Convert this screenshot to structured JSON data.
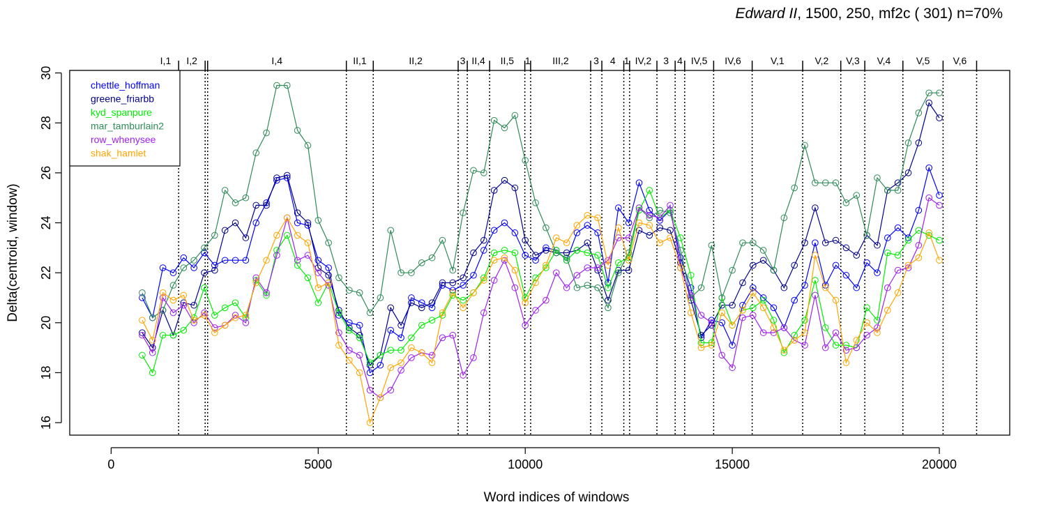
{
  "title": {
    "play": "Edward II",
    "rest": ", 1500, 250, mf2c ( 301)   n=70%"
  },
  "chart_data": {
    "type": "line",
    "xlabel": "Word indices of windows",
    "ylabel": "Delta(centroid, window)",
    "xlim": [
      -1000,
      21700
    ],
    "ylim": [
      15.5,
      30.1
    ],
    "xticks": [
      0,
      5000,
      10000,
      15000,
      20000
    ],
    "yticks": [
      16,
      18,
      20,
      22,
      24,
      26,
      28,
      30
    ],
    "legend_position": "top-left",
    "grid": false,
    "scenes": [
      {
        "label": "I,1",
        "end": 1630
      },
      {
        "label": "I,2",
        "end": 2270
      },
      {
        "label": "",
        "end": 2330
      },
      {
        "label": "I,4",
        "end": 5680
      },
      {
        "label": "II,1",
        "end": 6330
      },
      {
        "label": "II,2",
        "end": 8380
      },
      {
        "label": "3",
        "end": 8600
      },
      {
        "label": "II,4",
        "end": 9140
      },
      {
        "label": "II,5",
        "end": 9990
      },
      {
        "label": "1",
        "end": 10130
      },
      {
        "label": "III,2",
        "end": 11580
      },
      {
        "label": "3",
        "end": 11850
      },
      {
        "label": "4",
        "end": 12380
      },
      {
        "label": "1",
        "end": 12520
      },
      {
        "label": "IV,2",
        "end": 13180
      },
      {
        "label": "3",
        "end": 13620
      },
      {
        "label": "4",
        "end": 13850
      },
      {
        "label": "IV,5",
        "end": 14550
      },
      {
        "label": "IV,6",
        "end": 15480
      },
      {
        "label": "V,1",
        "end": 16700
      },
      {
        "label": "V,2",
        "end": 17620
      },
      {
        "label": "V,3",
        "end": 18200
      },
      {
        "label": "V,4",
        "end": 19120
      },
      {
        "label": "V,5",
        "end": 20090
      },
      {
        "label": "V,6",
        "end": 20900
      }
    ],
    "x": [
      750,
      1000,
      1250,
      1500,
      1750,
      2000,
      2250,
      2500,
      2750,
      3000,
      3250,
      3500,
      3750,
      4000,
      4250,
      4500,
      4750,
      5000,
      5250,
      5500,
      5750,
      6000,
      6250,
      6500,
      6750,
      7000,
      7250,
      7500,
      7750,
      8000,
      8250,
      8500,
      8750,
      9000,
      9250,
      9500,
      9750,
      10000,
      10250,
      10500,
      10750,
      11000,
      11250,
      11500,
      11750,
      12000,
      12250,
      12500,
      12750,
      13000,
      13250,
      13500,
      13750,
      14000,
      14250,
      14500,
      14750,
      15000,
      15250,
      15500,
      15750,
      16000,
      16250,
      16500,
      16750,
      17000,
      17250,
      17500,
      17750,
      18000,
      18250,
      18500,
      18750,
      19000,
      19250,
      19500,
      19750,
      20000
    ],
    "series": [
      {
        "name": "chettle_hoffman",
        "color": "#0000ff",
        "values": [
          21.0,
          20.2,
          22.2,
          22.0,
          22.6,
          22.2,
          22.8,
          22.3,
          22.5,
          22.5,
          22.5,
          24.0,
          24.8,
          25.7,
          25.8,
          24.0,
          23.9,
          22.5,
          22.2,
          20.3,
          20.0,
          19.9,
          18.0,
          18.3,
          19.7,
          19.4,
          21.0,
          20.8,
          20.6,
          21.5,
          21.3,
          21.5,
          21.9,
          22.9,
          23.7,
          24.0,
          23.6,
          22.7,
          22.5,
          23.0,
          22.9,
          22.5,
          23.6,
          23.9,
          23.6,
          21.6,
          24.6,
          24.0,
          25.6,
          24.5,
          24.1,
          24.5,
          22.6,
          21.4,
          19.4,
          20.1,
          20.0,
          19.1,
          20.7,
          21.4,
          21.0,
          20.6,
          19.8,
          20.9,
          21.5,
          23.2,
          21.5,
          22.3,
          21.9,
          21.4,
          22.4,
          22.0,
          23.4,
          23.8,
          23.4,
          24.5,
          26.2,
          25.1
        ]
      },
      {
        "name": "greene_friarbb",
        "color": "#00008b",
        "values": [
          19.6,
          19.0,
          20.5,
          19.5,
          20.8,
          20.7,
          22.0,
          22.1,
          23.7,
          24.0,
          23.4,
          24.7,
          24.7,
          25.8,
          25.9,
          24.4,
          24.0,
          22.2,
          21.9,
          20.5,
          19.8,
          19.5,
          18.3,
          18.7,
          20.6,
          19.9,
          20.8,
          20.6,
          20.8,
          21.6,
          21.6,
          21.8,
          22.8,
          23.3,
          25.3,
          25.7,
          25.4,
          23.3,
          22.7,
          22.9,
          22.8,
          22.8,
          22.9,
          23.2,
          22.1,
          20.9,
          22.1,
          22.1,
          23.7,
          23.5,
          23.8,
          23.7,
          22.4,
          20.9,
          19.5,
          19.9,
          20.7,
          20.7,
          21.6,
          22.3,
          22.5,
          22.1,
          21.4,
          22.3,
          23.2,
          24.6,
          23.2,
          23.3,
          23.0,
          22.7,
          23.5,
          23.1,
          25.3,
          25.6,
          26.0,
          27.2,
          28.8,
          28.2
        ]
      },
      {
        "name": "kyd_spanpure",
        "color": "#00ee00",
        "values": [
          18.7,
          18.0,
          19.5,
          19.5,
          19.7,
          20.2,
          21.4,
          20.3,
          20.6,
          20.8,
          20.2,
          21.7,
          21.1,
          22.9,
          23.5,
          22.3,
          21.8,
          20.8,
          21.6,
          20.4,
          19.7,
          19.4,
          18.4,
          18.7,
          18.9,
          18.9,
          19.4,
          19.9,
          20.1,
          20.3,
          21.1,
          20.9,
          21.2,
          21.8,
          22.8,
          22.9,
          22.8,
          21.0,
          21.8,
          22.2,
          22.9,
          22.5,
          22.9,
          22.8,
          22.7,
          21.4,
          22.4,
          22.6,
          24.5,
          25.3,
          24.2,
          24.5,
          23.4,
          21.9,
          19.2,
          19.2,
          21.0,
          19.9,
          20.5,
          20.6,
          20.9,
          20.1,
          18.8,
          19.5,
          20.1,
          21.7,
          19.8,
          19.1,
          19.1,
          19.0,
          20.6,
          20.1,
          22.8,
          22.7,
          23.3,
          23.7,
          23.5,
          23.3
        ]
      },
      {
        "name": "mar_tamburlain2",
        "color": "#2e8b57",
        "values": [
          21.2,
          20.2,
          20.5,
          21.5,
          22.2,
          22.5,
          23.0,
          23.5,
          25.3,
          24.8,
          25.0,
          26.8,
          27.6,
          29.5,
          29.5,
          27.7,
          27.1,
          24.1,
          23.2,
          21.8,
          21.3,
          21.2,
          20.4,
          21.0,
          23.7,
          22.0,
          22.0,
          22.4,
          22.6,
          23.3,
          22.1,
          24.4,
          26.1,
          26.0,
          28.1,
          27.8,
          28.3,
          26.5,
          24.8,
          23.8,
          22.8,
          22.6,
          21.4,
          21.5,
          21.4,
          20.6,
          22.0,
          22.8,
          24.6,
          24.2,
          24.5,
          24.4,
          22.9,
          21.0,
          21.4,
          23.1,
          21.0,
          22.1,
          23.2,
          23.2,
          22.9,
          22.1,
          24.2,
          25.4,
          27.1,
          25.6,
          25.6,
          25.6,
          24.8,
          25.1,
          23.5,
          25.8,
          25.3,
          25.3,
          27.2,
          28.4,
          29.2,
          29.2
        ]
      },
      {
        "name": "row_whenysee",
        "color": "#a020f0",
        "values": [
          19.5,
          18.8,
          21.0,
          20.4,
          20.7,
          20.0,
          20.4,
          19.8,
          19.9,
          20.3,
          20.0,
          21.8,
          21.2,
          22.7,
          24.2,
          22.5,
          22.7,
          22.0,
          21.5,
          19.6,
          18.9,
          18.7,
          17.3,
          17.0,
          17.3,
          18.1,
          18.6,
          18.8,
          18.7,
          19.4,
          19.5,
          17.9,
          18.6,
          20.4,
          21.7,
          22.5,
          21.4,
          19.9,
          20.5,
          20.9,
          22.0,
          21.4,
          21.9,
          22.2,
          22.2,
          22.5,
          23.4,
          23.4,
          24.6,
          24.3,
          24.2,
          24.7,
          22.2,
          21.1,
          20.3,
          20.0,
          18.7,
          18.2,
          20.2,
          20.3,
          19.6,
          19.6,
          19.8,
          19.3,
          19.1,
          21.1,
          19.0,
          19.6,
          18.9,
          19.0,
          19.5,
          19.8,
          21.4,
          22.1,
          22.2,
          23.1,
          25.0,
          24.7
        ]
      },
      {
        "name": "shak_hamlet",
        "color": "#ffa500",
        "values": [
          20.1,
          19.3,
          21.2,
          20.9,
          21.1,
          20.1,
          20.3,
          19.6,
          19.9,
          20.2,
          20.3,
          21.6,
          22.5,
          23.5,
          24.2,
          23.5,
          23.2,
          21.4,
          21.6,
          19.1,
          18.5,
          18.0,
          16.0,
          17.0,
          18.2,
          18.4,
          19.0,
          18.8,
          18.4,
          20.4,
          21.2,
          20.6,
          21.2,
          21.7,
          22.5,
          22.6,
          22.1,
          20.8,
          21.6,
          22.3,
          23.4,
          23.2,
          23.9,
          24.3,
          24.2,
          22.3,
          23.8,
          22.5,
          24.0,
          23.9,
          23.2,
          23.4,
          22.2,
          20.4,
          19.0,
          19.1,
          20.4,
          19.9,
          20.5,
          21.2,
          20.6,
          19.8,
          18.9,
          19.3,
          19.6,
          22.7,
          21.4,
          20.9,
          18.4,
          19.3,
          20.0,
          19.6,
          20.5,
          21.2,
          22.3,
          22.6,
          23.6,
          22.5
        ]
      }
    ]
  }
}
